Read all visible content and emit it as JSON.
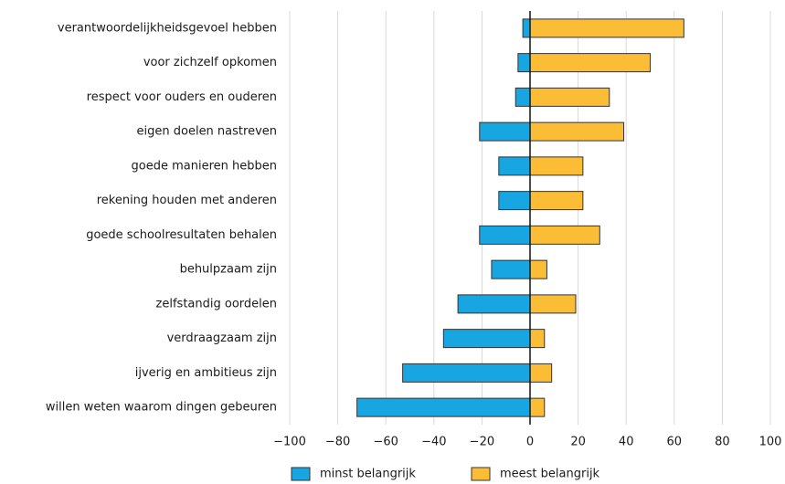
{
  "chart_data": {
    "type": "diverging-bar",
    "categories": [
      "verantwoordelijkheidsgevoel hebben",
      "voor zichzelf opkomen",
      "respect voor ouders en ouderen",
      "eigen doelen nastreven",
      "goede manieren hebben",
      "rekening houden met anderen",
      "goede schoolresultaten behalen",
      "behulpzaam zijn",
      "zelfstandig oordelen",
      "verdraagzaam zijn",
      "ijverig en ambitieus zijn",
      "willen weten waarom dingen gebeuren"
    ],
    "series": [
      {
        "name": "minst belangrijk",
        "color": "#18a6e2",
        "values": [
          -3,
          -5,
          -6,
          -21,
          -13,
          -13,
          -21,
          -16,
          -30,
          -36,
          -53,
          -72
        ]
      },
      {
        "name": "meest belangrijk",
        "color": "#fbbd36",
        "values": [
          64,
          50,
          33,
          39,
          22,
          22,
          29,
          7,
          19,
          6,
          9,
          6
        ]
      }
    ],
    "xlim": [
      -100,
      100
    ],
    "xticks": [
      {
        "value": -100,
        "label": "−100"
      },
      {
        "value": -80,
        "label": "−80"
      },
      {
        "value": -60,
        "label": "−60"
      },
      {
        "value": -40,
        "label": "−40"
      },
      {
        "value": -20,
        "label": "−20"
      },
      0,
      20,
      40,
      60,
      80,
      100
    ],
    "grid": true
  }
}
